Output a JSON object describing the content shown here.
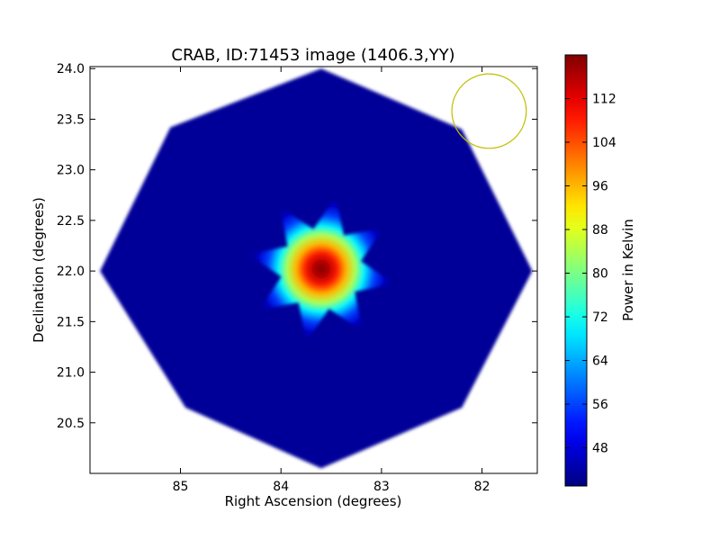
{
  "chart_data": {
    "type": "heatmap",
    "title": "CRAB, ID:71453 image (1406.3,YY)",
    "xlabel": "Right Ascension (degrees)",
    "ylabel": "Declination (degrees)",
    "xlim": [
      85.9,
      81.45
    ],
    "ylim": [
      20.0,
      24.02
    ],
    "xticks": [
      85,
      84,
      83,
      82
    ],
    "xtick_labels": [
      "85",
      "84",
      "83",
      "82"
    ],
    "yticks": [
      20.5,
      21.0,
      21.5,
      22.0,
      22.5,
      23.0,
      23.5,
      24.0
    ],
    "ytick_labels": [
      "20.5",
      "21.0",
      "21.5",
      "22.0",
      "22.5",
      "23.0",
      "23.5",
      "24.0"
    ],
    "colormap": "jet",
    "colorbar": {
      "label": "Power in Kelvin",
      "min": 41,
      "max": 120,
      "ticks": [
        48,
        56,
        64,
        72,
        80,
        88,
        96,
        104,
        112
      ],
      "tick_labels": [
        "48",
        "56",
        "64",
        "72",
        "80",
        "88",
        "96",
        "104",
        "112"
      ]
    },
    "field_of_view_octagon": [
      [
        83.6,
        24.0
      ],
      [
        82.2,
        23.4
      ],
      [
        81.5,
        22.0
      ],
      [
        82.2,
        20.65
      ],
      [
        83.6,
        20.05
      ],
      [
        84.95,
        20.65
      ],
      [
        85.8,
        22.0
      ],
      [
        85.1,
        23.42
      ]
    ],
    "background_level": 43,
    "source": {
      "ra": 83.6,
      "dec": 22.02,
      "peak": 120
    },
    "beam_circle": {
      "ra": 81.93,
      "dec": 23.58,
      "radius_deg": 0.37,
      "color": "#bfbf00"
    }
  }
}
